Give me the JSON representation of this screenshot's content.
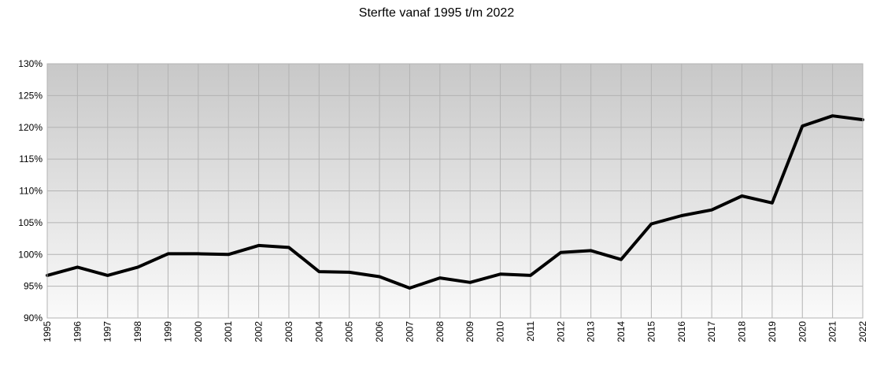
{
  "chart_data": {
    "type": "line",
    "title": "Sterfte vanaf 1995 t/m 2022",
    "xlabel": "",
    "ylabel": "",
    "x": [
      "1995",
      "1996",
      "1997",
      "1998",
      "1999",
      "2000",
      "2001",
      "2002",
      "2003",
      "2004",
      "2005",
      "2006",
      "2007",
      "2008",
      "2009",
      "2010",
      "2011",
      "2012",
      "2013",
      "2014",
      "2015",
      "2016",
      "2017",
      "2018",
      "2019",
      "2020",
      "2021",
      "2022"
    ],
    "series": [
      {
        "values": [
          96.7,
          98.0,
          96.7,
          98.0,
          100.1,
          100.1,
          100.0,
          101.4,
          101.1,
          97.3,
          97.2,
          96.5,
          94.7,
          96.3,
          95.6,
          96.9,
          96.7,
          100.3,
          100.6,
          99.2,
          104.8,
          106.1,
          107.0,
          109.2,
          108.1,
          120.2,
          121.8,
          121.2
        ],
        "color": "#000000"
      }
    ],
    "ylim": [
      90,
      130
    ],
    "yticks": [
      90,
      95,
      100,
      105,
      110,
      115,
      120,
      125,
      130
    ],
    "ytick_format": "%",
    "grid": true,
    "legend": "none",
    "background_gradient": [
      "#c8c8c8",
      "#fafafa"
    ]
  }
}
